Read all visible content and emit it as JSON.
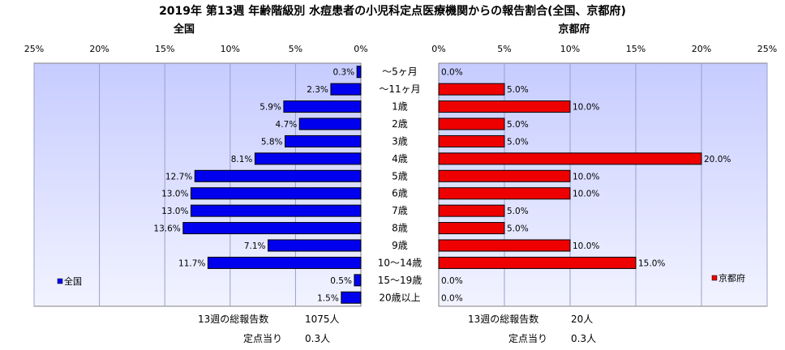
{
  "title": "2019年 第13週 年齢階級別 水痘患者の小児科定点医療機関からの報告割合(全国、京都府)",
  "colors": {
    "national": "#0000ee",
    "kyoto": "#ee0000",
    "outline": "#000000"
  },
  "chart_data": [
    {
      "type": "bar",
      "orientation": "horizontal",
      "direction": "right-to-left",
      "panel_title": "全国",
      "legend": "全国",
      "legend_position": "bottom-left",
      "xlim": [
        0,
        25
      ],
      "ticks": [
        "0%",
        "5%",
        "10%",
        "15%",
        "20%",
        "25%"
      ],
      "tick_values": [
        0,
        5,
        10,
        15,
        20,
        25
      ],
      "grid": true,
      "categories": [
        "～5ヶ月",
        "～11ヶ月",
        "1歳",
        "2歳",
        "3歳",
        "4歳",
        "5歳",
        "6歳",
        "7歳",
        "8歳",
        "9歳",
        "10～14歳",
        "15～19歳",
        "20歳以上"
      ],
      "values": [
        0.3,
        2.3,
        5.9,
        4.7,
        5.8,
        8.1,
        12.7,
        13.0,
        13.0,
        13.6,
        7.1,
        11.7,
        0.5,
        1.5
      ],
      "labels": [
        "0.3%",
        "2.3%",
        "5.9%",
        "4.7%",
        "5.8%",
        "8.1%",
        "12.7%",
        "13.0%",
        "13.0%",
        "13.6%",
        "7.1%",
        "11.7%",
        "0.5%",
        "1.5%"
      ],
      "footer": {
        "total_label": "13週の総報告数",
        "total_value": "1075人",
        "per_label": "定点当り",
        "per_value": "0.3人"
      }
    },
    {
      "type": "bar",
      "orientation": "horizontal",
      "direction": "left-to-right",
      "panel_title": "京都府",
      "legend": "京都府",
      "legend_position": "bottom-right",
      "xlim": [
        0,
        25
      ],
      "ticks": [
        "0%",
        "5%",
        "10%",
        "15%",
        "20%",
        "25%"
      ],
      "tick_values": [
        0,
        5,
        10,
        15,
        20,
        25
      ],
      "grid": true,
      "categories": [
        "～5ヶ月",
        "～11ヶ月",
        "1歳",
        "2歳",
        "3歳",
        "4歳",
        "5歳",
        "6歳",
        "7歳",
        "8歳",
        "9歳",
        "10～14歳",
        "15～19歳",
        "20歳以上"
      ],
      "values": [
        0.0,
        5.0,
        10.0,
        5.0,
        5.0,
        20.0,
        10.0,
        10.0,
        5.0,
        5.0,
        10.0,
        15.0,
        0.0,
        0.0
      ],
      "labels": [
        "0.0%",
        "5.0%",
        "10.0%",
        "5.0%",
        "5.0%",
        "20.0%",
        "10.0%",
        "10.0%",
        "5.0%",
        "5.0%",
        "10.0%",
        "15.0%",
        "0.0%",
        "0.0%"
      ],
      "footer": {
        "total_label": "13週の総報告数",
        "total_value": "20人",
        "per_label": "定点当り",
        "per_value": "0.3人"
      }
    }
  ]
}
